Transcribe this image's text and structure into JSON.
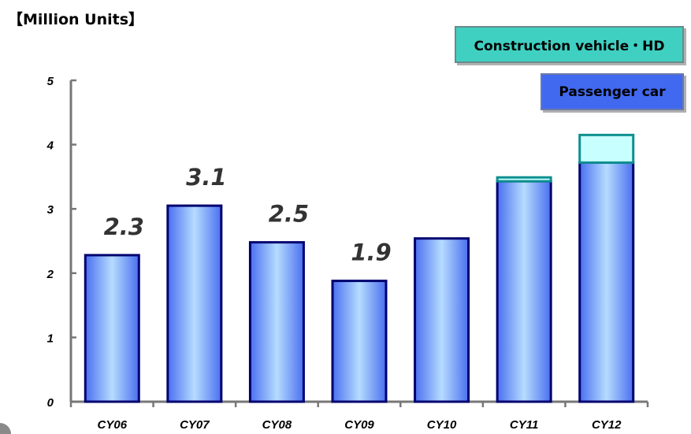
{
  "unit_label": "【Million Units】",
  "legend": {
    "construction": "Construction vehicle・HD",
    "passenger": "Passenger car"
  },
  "colors": {
    "passenger_fill_edge": "#4a6ff0",
    "passenger_fill_center": "#b6dcff",
    "passenger_stroke": "#00006e",
    "construction_fill": "#c8ffff",
    "construction_stroke": "#0e8f8f",
    "axis": "#777777"
  },
  "chart_data": {
    "type": "bar",
    "stacked": true,
    "categories": [
      "CY06",
      "CY07",
      "CY08",
      "CY09",
      "CY10",
      "CY11",
      "CY12"
    ],
    "series": [
      {
        "name": "Passenger car",
        "values": [
          2.28,
          3.05,
          2.48,
          1.88,
          2.54,
          3.43,
          3.72
        ]
      },
      {
        "name": "Construction vehicle・HD",
        "values": [
          0,
          0,
          0,
          0,
          0,
          0.06,
          0.43
        ]
      }
    ],
    "data_labels": [
      "2.3",
      "3.1",
      "2.5",
      "1.9",
      "",
      "",
      ""
    ],
    "yticks": [
      "0",
      "1",
      "2",
      "3",
      "4",
      "5"
    ],
    "ylim": [
      0,
      5
    ],
    "grid": false,
    "legend_position": "top-right"
  }
}
